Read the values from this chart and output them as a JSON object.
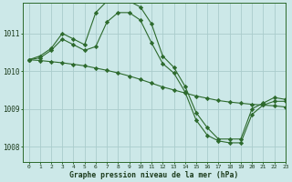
{
  "background_color": "#cce8e8",
  "grid_color": "#aacccc",
  "line_color": "#2d6a2d",
  "title": "Graphe pression niveau de la mer (hPa)",
  "xlim": [
    -0.5,
    23
  ],
  "ylim": [
    1007.6,
    1011.8
  ],
  "yticks": [
    1008,
    1009,
    1010,
    1011
  ],
  "xticks": [
    0,
    1,
    2,
    3,
    4,
    5,
    6,
    7,
    8,
    9,
    10,
    11,
    12,
    13,
    14,
    15,
    16,
    17,
    18,
    19,
    20,
    21,
    22,
    23
  ],
  "series": [
    {
      "x": [
        0,
        1,
        2,
        3,
        4,
        5,
        6,
        7,
        8,
        9,
        10,
        11,
        12,
        13,
        14,
        15,
        16,
        17,
        18,
        19,
        20,
        21,
        22,
        23
      ],
      "y": [
        1010.3,
        1010.4,
        1010.6,
        1011.0,
        1010.85,
        1010.7,
        1011.55,
        1011.85,
        1011.85,
        1011.85,
        1011.7,
        1011.25,
        1010.4,
        1010.1,
        1009.6,
        1008.9,
        1008.5,
        1008.2,
        1008.2,
        1008.2,
        1009.0,
        1009.15,
        1009.3,
        1009.25
      ]
    },
    {
      "x": [
        0,
        1,
        2,
        3,
        4,
        5,
        6,
        7,
        8,
        9,
        10,
        11,
        12,
        13,
        14,
        15,
        16,
        17,
        18,
        19,
        20,
        21,
        22,
        23
      ],
      "y": [
        1010.3,
        1010.35,
        1010.55,
        1010.85,
        1010.7,
        1010.55,
        1010.65,
        1011.3,
        1011.55,
        1011.55,
        1011.35,
        1010.75,
        1010.2,
        1009.95,
        1009.45,
        1008.7,
        1008.3,
        1008.15,
        1008.1,
        1008.1,
        1008.85,
        1009.1,
        1009.2,
        1009.2
      ]
    },
    {
      "x": [
        0,
        1,
        2,
        3,
        4,
        5,
        6,
        7,
        8,
        9,
        10,
        11,
        12,
        13,
        14,
        15,
        16,
        17,
        18,
        19,
        20,
        21,
        22,
        23
      ],
      "y": [
        1010.3,
        1010.28,
        1010.25,
        1010.22,
        1010.18,
        1010.14,
        1010.08,
        1010.02,
        1009.95,
        1009.87,
        1009.78,
        1009.68,
        1009.58,
        1009.5,
        1009.42,
        1009.34,
        1009.28,
        1009.22,
        1009.18,
        1009.15,
        1009.12,
        1009.1,
        1009.08,
        1009.05
      ]
    }
  ]
}
